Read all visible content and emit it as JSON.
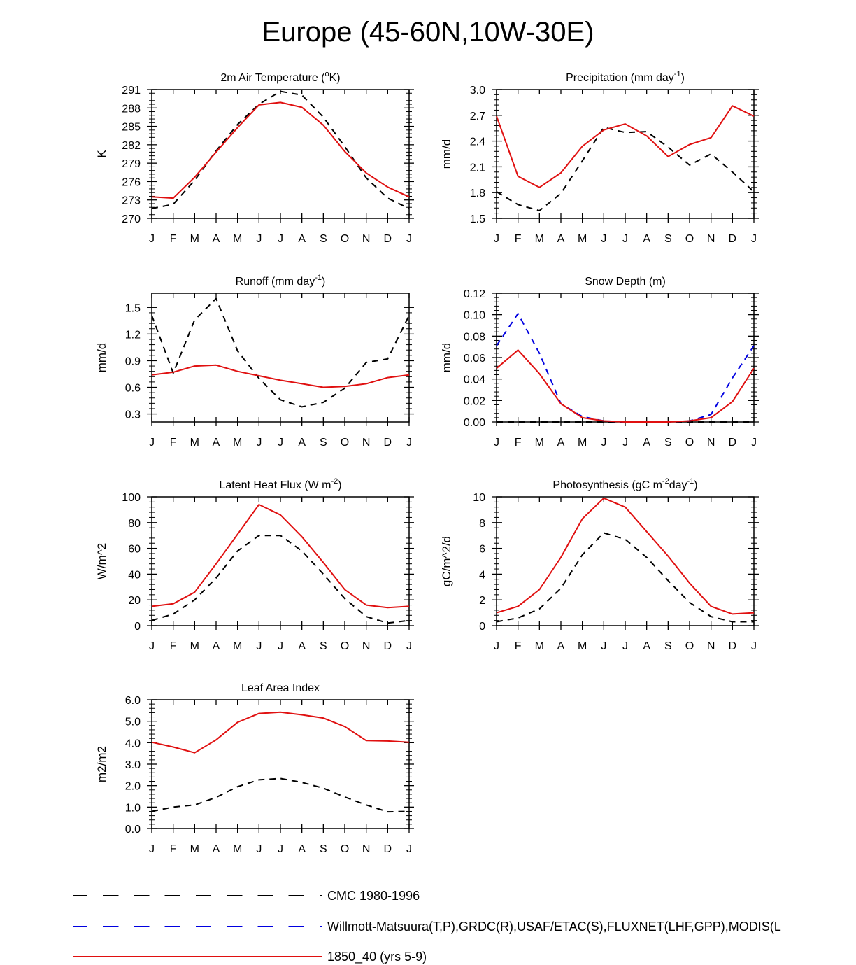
{
  "title": "Europe (45-60N,10W-30E)",
  "colors": {
    "obs_cmc": "#000000",
    "obs_multi": "#0000e0",
    "model": "#e01010"
  },
  "month_labels": [
    "J",
    "F",
    "M",
    "A",
    "M",
    "J",
    "J",
    "A",
    "S",
    "O",
    "N",
    "D",
    "J"
  ],
  "chart_data": [
    {
      "type": "line",
      "title": "2m Air Temperature (°K)",
      "title_parts": [
        "2m Air Temperature (",
        "o",
        "K)"
      ],
      "ylabel": "K",
      "ylim": [
        270,
        291
      ],
      "yticks": [
        270,
        273,
        276,
        279,
        282,
        285,
        288,
        291
      ],
      "ytick_labels": [
        "270",
        "273",
        "276",
        "279",
        "282",
        "285",
        "288",
        "291"
      ],
      "series": [
        {
          "name": "CMC 1980-1996",
          "style": "black-dash",
          "values": [
            271.6,
            272.3,
            276.2,
            281.0,
            285.3,
            288.6,
            290.7,
            290.1,
            286.5,
            281.7,
            276.6,
            273.3,
            271.6
          ]
        },
        {
          "name": "1850_40 (yrs 5-9)",
          "style": "red-solid",
          "values": [
            273.5,
            273.3,
            276.7,
            280.8,
            284.8,
            288.5,
            288.9,
            288.1,
            285.2,
            280.9,
            277.4,
            275.1,
            273.5
          ]
        }
      ]
    },
    {
      "type": "line",
      "title": "Precipitation (mm day-1)",
      "title_parts": [
        "Precipitation (mm day",
        "-1",
        ")"
      ],
      "ylabel": "mm/d",
      "ylim": [
        1.5,
        3.0
      ],
      "yticks": [
        1.5,
        1.8,
        2.1,
        2.4,
        2.7,
        3.0
      ],
      "ytick_labels": [
        "1.5",
        "1.8",
        "2.1",
        "2.4",
        "2.7",
        "3.0"
      ],
      "series": [
        {
          "name": "CMC 1980-1996",
          "style": "black-dash",
          "values": [
            1.81,
            1.66,
            1.59,
            1.79,
            2.17,
            2.56,
            2.5,
            2.51,
            2.33,
            2.12,
            2.25,
            2.04,
            1.81
          ]
        },
        {
          "name": "1850_40 (yrs 5-9)",
          "style": "red-solid",
          "values": [
            2.69,
            1.99,
            1.86,
            2.03,
            2.34,
            2.53,
            2.6,
            2.46,
            2.22,
            2.36,
            2.44,
            2.81,
            2.69
          ]
        }
      ]
    },
    {
      "type": "line",
      "title": "Runoff (mm day-1)",
      "title_parts": [
        "Runoff (mm day",
        "-1",
        ")"
      ],
      "ylabel": "mm/d",
      "ylim": [
        0.21,
        1.66
      ],
      "yticks": [
        0.3,
        0.6,
        0.9,
        1.2,
        1.5
      ],
      "ytick_labels": [
        "0.3",
        "0.6",
        "0.9",
        "1.2",
        "1.5"
      ],
      "series": [
        {
          "name": "CMC 1980-1996",
          "style": "black-dash",
          "values": [
            1.41,
            0.76,
            1.36,
            1.6,
            1.01,
            0.7,
            0.46,
            0.38,
            0.43,
            0.59,
            0.88,
            0.92,
            1.41
          ]
        },
        {
          "name": "1850_40 (yrs 5-9)",
          "style": "red-solid",
          "values": [
            0.74,
            0.77,
            0.84,
            0.85,
            0.78,
            0.73,
            0.68,
            0.64,
            0.6,
            0.61,
            0.64,
            0.71,
            0.74
          ]
        }
      ]
    },
    {
      "type": "line",
      "title": "Snow Depth (m)",
      "title_parts": [
        "Snow Depth (m)",
        "",
        ""
      ],
      "ylabel": "mm/d",
      "ylim": [
        0,
        0.12
      ],
      "yticks": [
        0,
        0.02,
        0.04,
        0.06,
        0.08,
        0.1,
        0.12
      ],
      "ytick_labels": [
        "0.00",
        "0.02",
        "0.04",
        "0.06",
        "0.08",
        "0.10",
        "0.12"
      ],
      "series": [
        {
          "name": "CMC 1980-1996",
          "style": "black-dash",
          "values": [
            0,
            0,
            0,
            0,
            0,
            0,
            0,
            0,
            0,
            0,
            0,
            0,
            0
          ]
        },
        {
          "name": "Willmott-Matsuura(T,P),GRDC(R),USAF/ETAC(S),FLUXNET(LHF,GPP),MODIS(L",
          "style": "blue-dash",
          "values": [
            0.071,
            0.101,
            0.064,
            0.017,
            0.005,
            0.001,
            0,
            0,
            0,
            0.001,
            0.007,
            0.041,
            0.071
          ]
        },
        {
          "name": "1850_40 (yrs 5-9)",
          "style": "red-solid",
          "values": [
            0.05,
            0.067,
            0.045,
            0.017,
            0.004,
            0.001,
            0,
            0,
            0,
            0.001,
            0.004,
            0.019,
            0.05
          ]
        }
      ]
    },
    {
      "type": "line",
      "title": "Latent Heat Flux (W m-2)",
      "title_parts": [
        "Latent Heat Flux (W m",
        "-2",
        ")"
      ],
      "ylabel": "W/m^2",
      "ylim": [
        0,
        100
      ],
      "yticks": [
        0,
        20,
        40,
        60,
        80,
        100
      ],
      "ytick_labels": [
        "0",
        "20",
        "40",
        "60",
        "80",
        "100"
      ],
      "series": [
        {
          "name": "CMC 1980-1996",
          "style": "black-dash",
          "values": [
            4,
            9,
            20,
            37,
            58,
            70,
            70,
            58,
            40,
            21,
            7,
            2,
            4
          ]
        },
        {
          "name": "1850_40 (yrs 5-9)",
          "style": "red-solid",
          "values": [
            15,
            17,
            26,
            48,
            71,
            94,
            86,
            69,
            49,
            28,
            16,
            14,
            15
          ]
        }
      ]
    },
    {
      "type": "line",
      "title": "Photosynthesis (gC m-2day-1)",
      "title_parts": [
        "Photosynthesis (gC m",
        "-2",
        "day",
        "-1",
        ")"
      ],
      "ylabel": "gC/m^2/d",
      "ylim": [
        0,
        10
      ],
      "yticks": [
        0,
        2,
        4,
        6,
        8,
        10
      ],
      "ytick_labels": [
        "0",
        "2",
        "4",
        "6",
        "8",
        "10"
      ],
      "series": [
        {
          "name": "CMC 1980-1996",
          "style": "black-dash",
          "values": [
            0.3,
            0.6,
            1.3,
            2.9,
            5.5,
            7.2,
            6.7,
            5.3,
            3.5,
            1.8,
            0.7,
            0.3,
            0.3
          ]
        },
        {
          "name": "1850_40 (yrs 5-9)",
          "style": "red-solid",
          "values": [
            1.0,
            1.5,
            2.8,
            5.3,
            8.3,
            9.9,
            9.2,
            7.3,
            5.4,
            3.3,
            1.5,
            0.9,
            1.0
          ]
        }
      ]
    },
    {
      "type": "line",
      "title": "Leaf Area Index",
      "title_parts": [
        "Leaf Area Index",
        "",
        ""
      ],
      "ylabel": "m2/m2",
      "ylim": [
        0,
        6.0
      ],
      "yticks": [
        0,
        1,
        2,
        3,
        4,
        5,
        6
      ],
      "ytick_labels": [
        "0.0",
        "1.0",
        "2.0",
        "3.0",
        "4.0",
        "5.0",
        "6.0"
      ],
      "series": [
        {
          "name": "CMC 1980-1996",
          "style": "black-dash",
          "values": [
            0.8,
            1.0,
            1.1,
            1.45,
            1.95,
            2.27,
            2.33,
            2.15,
            1.88,
            1.47,
            1.1,
            0.78,
            0.8
          ]
        },
        {
          "name": "1850_40 (yrs 5-9)",
          "style": "red-solid",
          "values": [
            4.02,
            3.8,
            3.53,
            4.13,
            4.95,
            5.36,
            5.42,
            5.3,
            5.15,
            4.75,
            4.1,
            4.08,
            4.02
          ]
        }
      ]
    }
  ],
  "legend": {
    "items": [
      {
        "label": "CMC 1980-1996",
        "style": "black-dash"
      },
      {
        "label": "Willmott-Matsuura(T,P),GRDC(R),USAF/ETAC(S),FLUXNET(LHF,GPP),MODIS(L",
        "style": "blue-dash"
      },
      {
        "label": "1850_40 (yrs 5-9)",
        "style": "red-solid"
      }
    ]
  }
}
